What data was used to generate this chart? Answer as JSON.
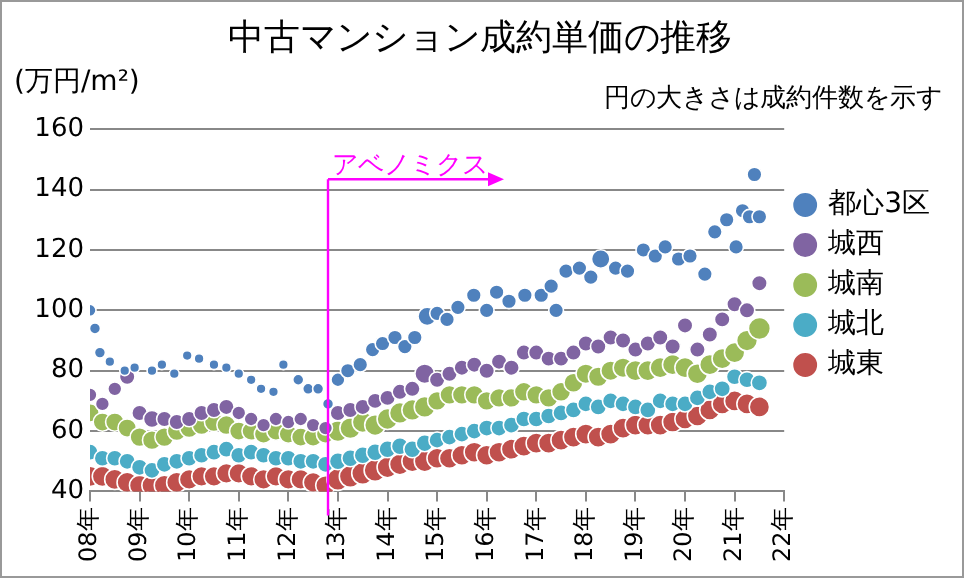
{
  "chart_data": {
    "type": "bubble",
    "title": "中古マンション成約単価の推移",
    "ylabel": "(万円/m²)",
    "annotations": [
      "円の大きさは成約件数を示す"
    ],
    "x": [
      8,
      8.25,
      8.5,
      8.75,
      9,
      9.25,
      9.5,
      9.75,
      10,
      10.25,
      10.5,
      10.75,
      11,
      11.25,
      11.5,
      11.75,
      12,
      12.25,
      12.5,
      12.75,
      13,
      13.25,
      13.5,
      13.75,
      14,
      14.25,
      14.5,
      14.75,
      15,
      15.25,
      15.5,
      15.75,
      16,
      16.25,
      16.5,
      16.75,
      17,
      17.25,
      17.5,
      17.75,
      18,
      18.25,
      18.5,
      18.75,
      19,
      19.25,
      19.5,
      19.75,
      20,
      20.25,
      20.5,
      20.75,
      21,
      21.25,
      21.5
    ],
    "series": [
      {
        "name": "都心3区",
        "color": "#4f81bd",
        "x": [
          8,
          8.1,
          8.2,
          8.4,
          8.7,
          8.9,
          9.25,
          9.45,
          9.7,
          9.96,
          10.2,
          10.5,
          10.75,
          11,
          11.25,
          11.45,
          11.7,
          11.9,
          12.2,
          12.4,
          12.6,
          12.8,
          13,
          13.2,
          13.45,
          13.7,
          13.9,
          14.15,
          14.35,
          14.55,
          14.8,
          15,
          15.2,
          15.42,
          15.74,
          16,
          16.2,
          16.45,
          16.77,
          17.1,
          17.3,
          17.4,
          17.6,
          17.87,
          18.1,
          18.3,
          18.6,
          18.84,
          19.16,
          19.4,
          19.6,
          19.87,
          20.1,
          20.4,
          20.6,
          20.84,
          21.03,
          21.16,
          21.3,
          21.4,
          21.5
        ],
        "values": [
          100,
          94,
          86,
          83,
          80,
          81,
          80,
          82,
          79,
          85,
          84,
          82,
          81,
          79,
          77,
          74,
          73,
          82,
          77,
          74,
          74,
          69,
          77,
          80,
          82,
          87,
          89,
          91,
          88,
          91,
          98,
          99,
          97,
          101,
          105,
          100,
          106,
          103,
          105,
          105,
          108,
          100,
          113,
          114,
          111,
          117,
          114,
          113,
          120,
          118,
          121,
          117,
          118,
          112,
          126,
          130,
          121,
          133,
          131,
          145,
          131
        ],
        "sizes": [
          0.3,
          0.25,
          0.25,
          0.2,
          0.2,
          0.2,
          0.2,
          0.2,
          0.2,
          0.2,
          0.2,
          0.2,
          0.2,
          0.2,
          0.2,
          0.2,
          0.2,
          0.2,
          0.25,
          0.25,
          0.25,
          0.25,
          0.4,
          0.45,
          0.45,
          0.45,
          0.45,
          0.45,
          0.45,
          0.45,
          0.7,
          0.45,
          0.45,
          0.45,
          0.45,
          0.45,
          0.45,
          0.45,
          0.45,
          0.45,
          0.45,
          0.45,
          0.45,
          0.45,
          0.45,
          0.7,
          0.45,
          0.45,
          0.45,
          0.45,
          0.45,
          0.45,
          0.45,
          0.45,
          0.45,
          0.45,
          0.45,
          0.45,
          0.45,
          0.45,
          0.45
        ]
      },
      {
        "name": "城西",
        "color": "#8064a2",
        "values": [
          72,
          69,
          74,
          78,
          66,
          64,
          64,
          63,
          64,
          66,
          67,
          68,
          66,
          64,
          62,
          64,
          63,
          64,
          62,
          61,
          66,
          67,
          68,
          70,
          71,
          73,
          74,
          79,
          77,
          79,
          81,
          82,
          80,
          83,
          81,
          86,
          86,
          84,
          84,
          86,
          89,
          88,
          91,
          90,
          87,
          89,
          91,
          88,
          95,
          87,
          92,
          97,
          102,
          100,
          109
        ],
        "sizes": [
          0.4,
          0.4,
          0.4,
          0.5,
          0.5,
          0.6,
          0.5,
          0.5,
          0.5,
          0.5,
          0.5,
          0.5,
          0.4,
          0.4,
          0.4,
          0.4,
          0.4,
          0.4,
          0.4,
          0.4,
          0.5,
          0.5,
          0.5,
          0.5,
          0.5,
          0.5,
          0.5,
          0.8,
          0.5,
          0.5,
          0.5,
          0.5,
          0.5,
          0.5,
          0.5,
          0.5,
          0.5,
          0.5,
          0.5,
          0.5,
          0.5,
          0.5,
          0.5,
          0.5,
          0.5,
          0.5,
          0.5,
          0.5,
          0.5,
          0.5,
          0.5,
          0.5,
          0.5,
          0.5,
          0.5
        ]
      },
      {
        "name": "城南",
        "color": "#9bbb59",
        "values": [
          66,
          63,
          63,
          61,
          58,
          57,
          58,
          60,
          61,
          62,
          63,
          62,
          60,
          60,
          59,
          60,
          59,
          58,
          58,
          59,
          60,
          61,
          63,
          62,
          64,
          66,
          67,
          68,
          70,
          72,
          72,
          72,
          70,
          71,
          71,
          73,
          72,
          71,
          73,
          76,
          79,
          78,
          80,
          81,
          80,
          80,
          81,
          82,
          81,
          79,
          82,
          84,
          86,
          90,
          94
        ],
        "sizes": [
          0.7,
          0.7,
          0.7,
          0.7,
          0.75,
          0.75,
          0.75,
          0.75,
          0.75,
          0.75,
          0.75,
          0.75,
          0.7,
          0.7,
          0.7,
          0.7,
          0.7,
          0.7,
          0.7,
          0.7,
          0.9,
          0.9,
          0.9,
          0.9,
          0.9,
          0.9,
          0.9,
          0.9,
          0.75,
          0.75,
          0.75,
          0.75,
          0.75,
          0.75,
          0.75,
          0.75,
          0.75,
          0.75,
          0.75,
          0.75,
          0.8,
          0.8,
          0.8,
          0.8,
          0.85,
          0.85,
          0.85,
          0.85,
          0.85,
          0.85,
          0.85,
          0.85,
          0.85,
          0.9,
          1
        ]
      },
      {
        "name": "城北",
        "color": "#4bacc6",
        "values": [
          53,
          51,
          51,
          50,
          48,
          47,
          49,
          50,
          51,
          52,
          53,
          54,
          52,
          53,
          52,
          51,
          51,
          50,
          50,
          49,
          50,
          51,
          52,
          53,
          54,
          55,
          54,
          56,
          57,
          58,
          59,
          60,
          61,
          61,
          62,
          64,
          64,
          65,
          66,
          67,
          69,
          68,
          70,
          69,
          68,
          67,
          70,
          69,
          69,
          71,
          73,
          74,
          78,
          77,
          76
        ],
        "sizes": [
          0.55,
          0.55,
          0.55,
          0.55,
          0.55,
          0.55,
          0.55,
          0.55,
          0.55,
          0.55,
          0.55,
          0.55,
          0.55,
          0.55,
          0.55,
          0.55,
          0.55,
          0.55,
          0.55,
          0.55,
          0.6,
          0.6,
          0.6,
          0.6,
          0.6,
          0.6,
          0.6,
          0.6,
          0.55,
          0.55,
          0.55,
          0.55,
          0.55,
          0.55,
          0.55,
          0.55,
          0.55,
          0.55,
          0.55,
          0.55,
          0.55,
          0.55,
          0.55,
          0.55,
          0.55,
          0.55,
          0.55,
          0.55,
          0.55,
          0.55,
          0.55,
          0.55,
          0.55,
          0.55,
          0.55
        ]
      },
      {
        "name": "城東",
        "color": "#c0504d",
        "values": [
          45,
          45,
          44,
          43,
          42,
          42,
          42,
          43,
          44,
          45,
          45,
          46,
          46,
          45,
          44,
          45,
          44,
          44,
          43,
          42,
          44,
          45,
          46,
          47,
          48,
          49,
          50,
          50,
          51,
          51,
          52,
          53,
          52,
          53,
          54,
          55,
          56,
          56,
          57,
          58,
          59,
          58,
          59,
          61,
          62,
          62,
          62,
          63,
          64,
          65,
          67,
          69,
          70,
          69,
          68
        ],
        "sizes": [
          0.85,
          0.85,
          0.85,
          0.85,
          0.85,
          0.85,
          0.85,
          0.85,
          0.8,
          0.8,
          0.8,
          0.8,
          0.8,
          0.8,
          0.8,
          0.8,
          0.8,
          0.8,
          0.8,
          0.8,
          1,
          1,
          1,
          1,
          0.9,
          0.9,
          0.9,
          0.9,
          0.85,
          0.85,
          0.85,
          0.85,
          0.85,
          0.85,
          0.85,
          0.85,
          0.85,
          0.85,
          0.85,
          0.85,
          0.85,
          0.85,
          0.85,
          0.85,
          0.85,
          0.85,
          0.85,
          0.85,
          0.85,
          0.85,
          0.85,
          0.85,
          0.85,
          0.85,
          0.85
        ]
      }
    ],
    "xlim": [
      8,
      22
    ],
    "ylim": [
      40,
      160
    ],
    "xticks": [
      {
        "value": 8,
        "label": "08年"
      },
      {
        "value": 9,
        "label": "09年"
      },
      {
        "value": 10,
        "label": "10年"
      },
      {
        "value": 11,
        "label": "11年"
      },
      {
        "value": 12,
        "label": "12年"
      },
      {
        "value": 13,
        "label": "13年"
      },
      {
        "value": 14,
        "label": "14年"
      },
      {
        "value": 15,
        "label": "15年"
      },
      {
        "value": 16,
        "label": "16年"
      },
      {
        "value": 17,
        "label": "17年"
      },
      {
        "value": 18,
        "label": "18年"
      },
      {
        "value": 19,
        "label": "19年"
      },
      {
        "value": 20,
        "label": "20年"
      },
      {
        "value": 21,
        "label": "21年"
      },
      {
        "value": 22,
        "label": "22年"
      }
    ],
    "yticks": [
      40,
      60,
      80,
      100,
      120,
      140,
      160
    ],
    "grid": "y",
    "legend": "right",
    "marker": "circle",
    "ref_lines": [
      {
        "axis": "x",
        "value": 12.8,
        "label": "アベノミクス",
        "color": "#ff00ff"
      }
    ]
  }
}
